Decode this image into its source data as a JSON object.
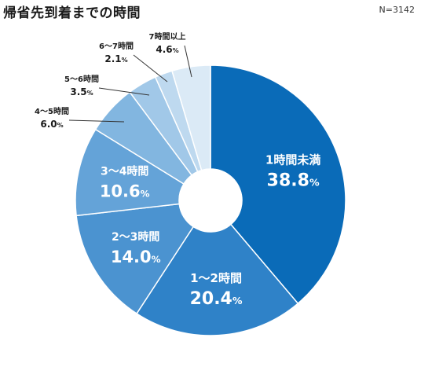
{
  "header": {
    "title": "帰省先到着までの時間",
    "sample_size": "N=3142"
  },
  "chart_data": {
    "type": "pie",
    "donut": true,
    "start": "12 o'clock",
    "direction": "clockwise",
    "slices": [
      {
        "label": "1時間未満",
        "value": 38.8,
        "value_text": "38.8%",
        "color": "#0a6bb8",
        "label_position": "inside"
      },
      {
        "label": "1～2時間",
        "value": 20.4,
        "value_text": "20.4%",
        "color": "#2f82c8",
        "label_position": "inside"
      },
      {
        "label": "2～3時間",
        "value": 14.0,
        "value_text": "14.0%",
        "color": "#4b93d0",
        "label_position": "inside"
      },
      {
        "label": "3～4時間",
        "value": 10.6,
        "value_text": "10.6%",
        "color": "#64a3d8",
        "label_position": "inside"
      },
      {
        "label": "4～5時間",
        "value": 6.0,
        "value_text": "6.0%",
        "color": "#82b6e0",
        "label_position": "outside"
      },
      {
        "label": "5～6時間",
        "value": 3.5,
        "value_text": "3.5%",
        "color": "#a1c8e8",
        "label_position": "outside"
      },
      {
        "label": "6～7時間",
        "value": 2.1,
        "value_text": "2.1%",
        "color": "#bed9ef",
        "label_position": "outside"
      },
      {
        "label": "7時間以上",
        "value": 4.6,
        "value_text": "4.6%",
        "color": "#dbeaf6",
        "label_position": "outside"
      }
    ]
  }
}
